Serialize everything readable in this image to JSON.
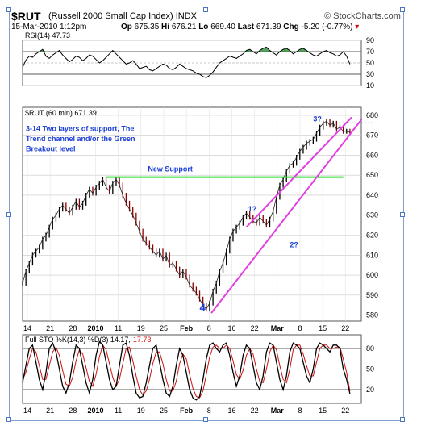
{
  "header": {
    "symbol": "$RUT",
    "symbol_full": "(Russell 2000 Small Cap Index) INDX",
    "brand": "© StockCharts.com",
    "date": "15-Mar-2010 1:12pm",
    "quote": {
      "op_label": "Op",
      "op": "675.35",
      "hi_label": "Hi",
      "hi": "676.21",
      "lo_label": "Lo",
      "lo": "669.40",
      "last_label": "Last",
      "last": "671.39",
      "chg_label": "Chg",
      "chg": "-5.20 (-0.77%)",
      "chg_marker": "▾"
    }
  },
  "colors": {
    "price": "#000000",
    "price_down": "#8b0000",
    "channel": "#e040e0",
    "support": "#33dd33",
    "annotation": "#1c3fd6",
    "rsi_fill": "#2e8b3a",
    "sto_k": "#000000",
    "sto_d": "#d01010",
    "grid": "#c8c8c8"
  },
  "chart_data": [
    {
      "type": "line",
      "panel": "rsi",
      "legend": "RSI(14) 47.73",
      "y_ticks": [
        10,
        30,
        50,
        70,
        90
      ],
      "ylim": [
        10,
        90
      ],
      "reference_lines": [
        30,
        70
      ],
      "x": [
        0,
        4,
        8,
        12,
        16,
        20,
        24,
        28,
        32,
        36,
        40,
        44,
        48,
        52,
        56,
        60,
        64,
        68,
        72,
        76,
        80,
        84,
        88,
        92,
        96,
        100,
        104,
        108,
        112,
        116,
        120,
        124,
        128,
        132,
        136,
        140,
        144,
        148,
        152,
        156,
        160,
        164,
        168,
        172,
        176,
        180,
        184,
        188,
        192,
        196,
        200,
        204,
        208,
        212,
        216,
        220,
        224,
        228,
        232,
        236,
        240,
        244,
        248,
        252,
        256,
        260,
        264,
        268,
        272,
        276,
        280,
        284,
        288,
        292,
        296,
        300,
        304,
        308,
        312,
        316,
        320,
        324,
        328,
        332,
        336,
        340,
        344,
        348,
        352,
        356,
        360,
        364,
        368,
        372,
        376,
        380,
        384,
        388,
        392
      ],
      "values": [
        42,
        55,
        62,
        60,
        66,
        70,
        74,
        62,
        58,
        64,
        68,
        72,
        64,
        58,
        52,
        56,
        62,
        60,
        54,
        58,
        64,
        62,
        56,
        50,
        54,
        60,
        66,
        72,
        66,
        60,
        54,
        48,
        50,
        54,
        48,
        40,
        42,
        44,
        38,
        36,
        40,
        44,
        48,
        46,
        40,
        38,
        42,
        48,
        44,
        40,
        38,
        36,
        32,
        30,
        26,
        24,
        28,
        34,
        42,
        50,
        54,
        58,
        62,
        60,
        58,
        62,
        66,
        72,
        74,
        70,
        66,
        72,
        76,
        78,
        72,
        68,
        64,
        70,
        74,
        76,
        72,
        66,
        70,
        74,
        76,
        72,
        68,
        64,
        62,
        66,
        70,
        72,
        68,
        66,
        62,
        64,
        70,
        62,
        47.73
      ]
    },
    {
      "type": "line",
      "panel": "price",
      "legend": "$RUT (60 min) 671.39",
      "ylim": [
        577,
        684
      ],
      "y_ticks": [
        580,
        590,
        600,
        610,
        620,
        630,
        640,
        650,
        660,
        670,
        680
      ],
      "x_ticks": [
        "14",
        "21",
        "28",
        "2010",
        "11",
        "19",
        "25",
        "Feb",
        "8",
        "16",
        "22",
        "Mar",
        "8",
        "15",
        "22"
      ],
      "x": [
        0,
        4,
        8,
        12,
        16,
        20,
        24,
        28,
        32,
        36,
        40,
        44,
        48,
        52,
        56,
        60,
        64,
        68,
        72,
        76,
        80,
        84,
        88,
        92,
        96,
        100,
        104,
        108,
        112,
        116,
        120,
        124,
        128,
        132,
        136,
        140,
        144,
        148,
        152,
        156,
        160,
        164,
        168,
        172,
        176,
        180,
        184,
        188,
        192,
        196,
        200,
        204,
        208,
        212,
        216,
        220,
        224,
        228,
        232,
        236,
        240,
        244,
        248,
        252,
        256,
        260,
        264,
        268,
        272,
        276,
        280,
        284,
        288,
        292,
        296,
        300,
        304,
        308,
        312,
        316,
        320,
        324,
        328,
        332,
        336,
        340,
        344,
        348,
        352,
        356,
        360,
        364,
        368,
        372,
        376,
        380,
        384,
        388,
        392
      ],
      "values": [
        596,
        602,
        606,
        610,
        612,
        614,
        618,
        620,
        624,
        628,
        630,
        633,
        635,
        633,
        631,
        634,
        637,
        634,
        636,
        640,
        643,
        641,
        644,
        646,
        648,
        644,
        642,
        646,
        648,
        645,
        640,
        636,
        633,
        630,
        626,
        622,
        618,
        616,
        614,
        612,
        610,
        612,
        608,
        610,
        605,
        606,
        603,
        600,
        602,
        599,
        595,
        593,
        591,
        588,
        585,
        583,
        586,
        592,
        596,
        602,
        606,
        612,
        618,
        622,
        624,
        626,
        629,
        631,
        629,
        627,
        626,
        629,
        627,
        625,
        628,
        632,
        639,
        645,
        648,
        652,
        655,
        656,
        659,
        662,
        664,
        666,
        667,
        668,
        671,
        674,
        676,
        677,
        675,
        676,
        673,
        674,
        672,
        672,
        671.39
      ],
      "annotations": [
        {
          "text": "3-14 Two layers of support, The",
          "x": 0,
          "y": 672
        },
        {
          "text": "Trend channel and/or the Green",
          "x": 0,
          "y": 667
        },
        {
          "text": "Breakout level",
          "x": 0,
          "y": 662
        },
        {
          "text": "New Support",
          "x": 150,
          "y": 652
        },
        {
          "text": "1?",
          "x": 270,
          "y": 632
        },
        {
          "text": "2?",
          "x": 320,
          "y": 614
        },
        {
          "text": "3?",
          "x": 348,
          "y": 677
        },
        {
          "text": "4",
          "x": 212,
          "y": 582
        }
      ],
      "lines": [
        {
          "name": "New Support",
          "from": [
            100,
            649
          ],
          "to": [
            384,
            649
          ]
        },
        {
          "name": "Upper channel",
          "from": [
            268,
            624
          ],
          "to": [
            394,
            679
          ]
        },
        {
          "name": "Lower channel",
          "from": [
            226,
            581
          ],
          "to": [
            406,
            678
          ]
        }
      ],
      "last_value_line": 676.2
    },
    {
      "type": "line",
      "panel": "stochastic",
      "legend": "Full STO %K(14,3) %D(3) 14.17,",
      "legend_d": "17.73",
      "y_ticks": [
        20,
        50,
        80
      ],
      "ylim": [
        0,
        100
      ],
      "reference_lines": [
        20,
        80
      ],
      "x_ticks": [
        "14",
        "21",
        "28",
        "2010",
        "11",
        "19",
        "25",
        "Feb",
        "8",
        "16",
        "22",
        "Mar",
        "8",
        "15",
        "22"
      ],
      "series": [
        {
          "name": "%K",
          "x": [
            0,
            4,
            8,
            12,
            16,
            20,
            24,
            28,
            32,
            36,
            40,
            44,
            48,
            52,
            56,
            60,
            64,
            68,
            72,
            76,
            80,
            84,
            88,
            92,
            96,
            100,
            104,
            108,
            112,
            116,
            120,
            124,
            128,
            132,
            136,
            140,
            144,
            148,
            152,
            156,
            160,
            164,
            168,
            172,
            176,
            180,
            184,
            188,
            192,
            196,
            200,
            204,
            208,
            212,
            216,
            220,
            224,
            228,
            232,
            236,
            240,
            244,
            248,
            252,
            256,
            260,
            264,
            268,
            272,
            276,
            280,
            284,
            288,
            292,
            296,
            300,
            304,
            308,
            312,
            316,
            320,
            324,
            328,
            332,
            336,
            340,
            344,
            348,
            352,
            356,
            360,
            364,
            368,
            372,
            376,
            380,
            384,
            388,
            392
          ],
          "values": [
            30,
            55,
            80,
            85,
            60,
            35,
            20,
            45,
            80,
            88,
            75,
            50,
            25,
            15,
            30,
            60,
            85,
            80,
            55,
            30,
            15,
            35,
            70,
            90,
            85,
            60,
            35,
            20,
            25,
            55,
            85,
            88,
            70,
            40,
            15,
            8,
            10,
            30,
            55,
            80,
            85,
            60,
            35,
            15,
            10,
            25,
            55,
            80,
            70,
            45,
            20,
            8,
            5,
            10,
            35,
            65,
            85,
            88,
            80,
            75,
            85,
            88,
            70,
            45,
            25,
            40,
            70,
            85,
            80,
            55,
            30,
            20,
            40,
            75,
            88,
            85,
            60,
            35,
            20,
            40,
            75,
            88,
            85,
            80,
            60,
            40,
            30,
            50,
            80,
            88,
            85,
            80,
            75,
            85,
            85,
            80,
            50,
            35,
            14.17
          ]
        },
        {
          "name": "%D",
          "x": [
            0,
            4,
            8,
            12,
            16,
            20,
            24,
            28,
            32,
            36,
            40,
            44,
            48,
            52,
            56,
            60,
            64,
            68,
            72,
            76,
            80,
            84,
            88,
            92,
            96,
            100,
            104,
            108,
            112,
            116,
            120,
            124,
            128,
            132,
            136,
            140,
            144,
            148,
            152,
            156,
            160,
            164,
            168,
            172,
            176,
            180,
            184,
            188,
            192,
            196,
            200,
            204,
            208,
            212,
            216,
            220,
            224,
            228,
            232,
            236,
            240,
            244,
            248,
            252,
            256,
            260,
            264,
            268,
            272,
            276,
            280,
            284,
            288,
            292,
            296,
            300,
            304,
            308,
            312,
            316,
            320,
            324,
            328,
            332,
            336,
            340,
            344,
            348,
            352,
            356,
            360,
            364,
            368,
            372,
            376,
            380,
            384,
            388,
            392
          ],
          "values": [
            35,
            45,
            65,
            80,
            75,
            55,
            35,
            35,
            55,
            75,
            82,
            70,
            48,
            28,
            25,
            38,
            62,
            78,
            72,
            52,
            32,
            25,
            42,
            68,
            85,
            78,
            58,
            38,
            25,
            35,
            58,
            80,
            82,
            62,
            40,
            20,
            12,
            18,
            35,
            58,
            75,
            75,
            58,
            35,
            18,
            18,
            32,
            58,
            72,
            65,
            42,
            22,
            10,
            8,
            18,
            42,
            68,
            82,
            85,
            80,
            80,
            85,
            80,
            62,
            42,
            35,
            48,
            70,
            80,
            72,
            50,
            32,
            30,
            50,
            75,
            85,
            78,
            55,
            35,
            30,
            50,
            78,
            85,
            85,
            72,
            55,
            40,
            40,
            60,
            80,
            85,
            85,
            80,
            80,
            82,
            82,
            65,
            45,
            17.73
          ]
        }
      ]
    }
  ]
}
